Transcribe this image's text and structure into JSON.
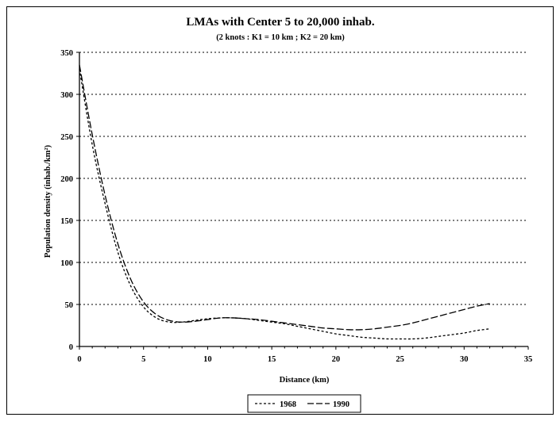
{
  "chart_data": {
    "type": "line",
    "title": "LMAs with Center 5 to 20,000 inhab.",
    "subtitle": "(2 knots : K1 = 10 km ; K2 = 20 km)",
    "xlabel": "Distance (km)",
    "ylabel": "Population density (inhab./km²)",
    "xlim": [
      0,
      35
    ],
    "ylim": [
      0,
      350
    ],
    "x_ticks": [
      "0",
      "5",
      "10",
      "15",
      "20",
      "25",
      "30",
      "35"
    ],
    "y_ticks": [
      "0",
      "50",
      "100",
      "150",
      "200",
      "250",
      "300",
      "350"
    ],
    "grid": "horizontal dotted",
    "legend_position": "bottom",
    "series": [
      {
        "name": "1968",
        "dash": "short",
        "x": [
          0,
          1,
          2,
          3,
          4,
          5,
          6,
          7,
          8,
          9,
          10,
          11,
          12,
          13,
          14,
          15,
          16,
          17,
          18,
          19,
          20,
          21,
          22,
          23,
          24,
          25,
          26,
          27,
          28,
          29,
          30,
          31,
          32
        ],
        "y": [
          330,
          240,
          170,
          112,
          72,
          47,
          34,
          29,
          29,
          31,
          33,
          34,
          34,
          33,
          31,
          29,
          27,
          24,
          21,
          18,
          15,
          13,
          11,
          10,
          9,
          9,
          9,
          10,
          12,
          14,
          16,
          19,
          21
        ]
      },
      {
        "name": "1990",
        "dash": "long",
        "x": [
          0,
          1,
          2,
          3,
          4,
          5,
          6,
          7,
          8,
          9,
          10,
          11,
          12,
          13,
          14,
          15,
          16,
          17,
          18,
          19,
          20,
          21,
          22,
          23,
          24,
          25,
          26,
          27,
          28,
          29,
          30,
          31,
          32
        ],
        "y": [
          335,
          252,
          180,
          122,
          80,
          53,
          38,
          31,
          29,
          30,
          32,
          34,
          34,
          33,
          32,
          30,
          28,
          26,
          24,
          22,
          21,
          20,
          20,
          21,
          23,
          25,
          28,
          32,
          36,
          40,
          44,
          48,
          51
        ]
      }
    ]
  }
}
